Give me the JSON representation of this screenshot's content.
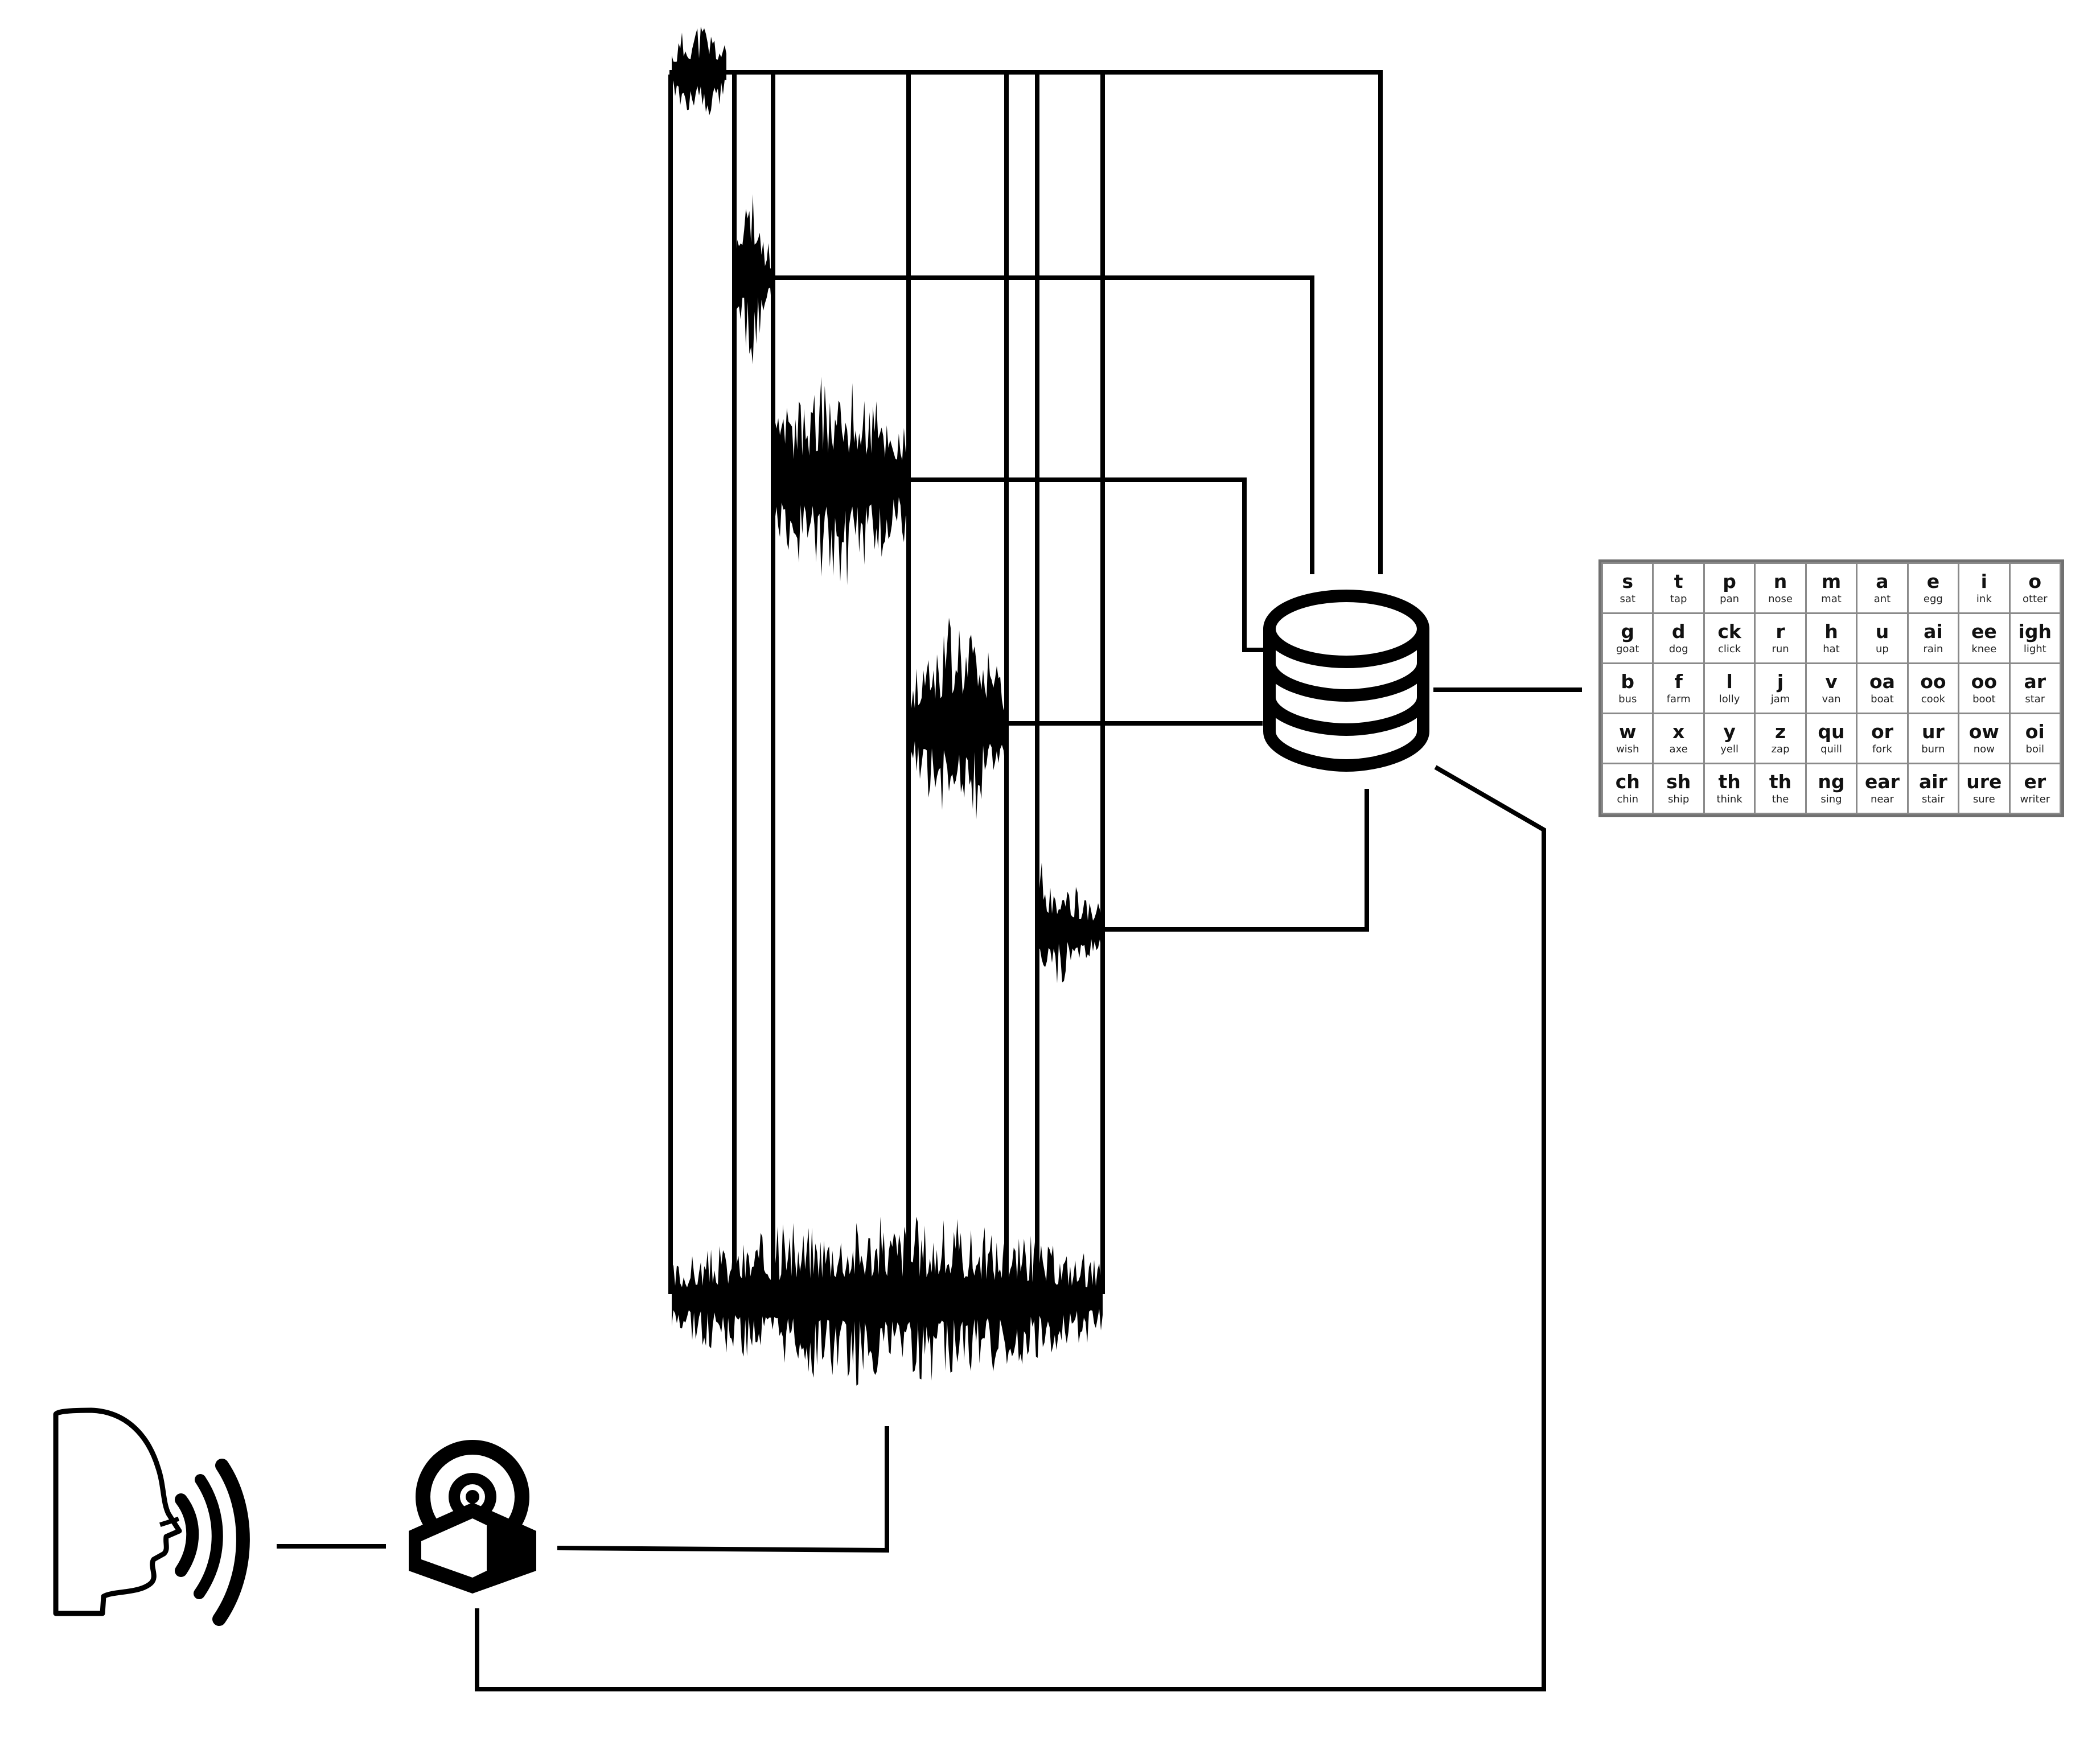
{
  "icons": {
    "speaker": "speaking-head-icon",
    "microphone": "microphone-icon",
    "database": "database-icon"
  },
  "phonics_table": {
    "rows": [
      [
        [
          "s",
          "sat"
        ],
        [
          "t",
          "tap"
        ],
        [
          "p",
          "pan"
        ],
        [
          "n",
          "nose"
        ],
        [
          "m",
          "mat"
        ],
        [
          "a",
          "ant"
        ],
        [
          "e",
          "egg"
        ],
        [
          "i",
          "ink"
        ],
        [
          "o",
          "otter"
        ]
      ],
      [
        [
          "g",
          "goat"
        ],
        [
          "d",
          "dog"
        ],
        [
          "ck",
          "click"
        ],
        [
          "r",
          "run"
        ],
        [
          "h",
          "hat"
        ],
        [
          "u",
          "up"
        ],
        [
          "ai",
          "rain"
        ],
        [
          "ee",
          "knee"
        ],
        [
          "igh",
          "light"
        ]
      ],
      [
        [
          "b",
          "bus"
        ],
        [
          "f",
          "farm"
        ],
        [
          "l",
          "lolly"
        ],
        [
          "j",
          "jam"
        ],
        [
          "v",
          "van"
        ],
        [
          "oa",
          "boat"
        ],
        [
          "oo",
          "cook"
        ],
        [
          "oo",
          "boot"
        ],
        [
          "ar",
          "star"
        ]
      ],
      [
        [
          "w",
          "wish"
        ],
        [
          "x",
          "axe"
        ],
        [
          "y",
          "yell"
        ],
        [
          "z",
          "zap"
        ],
        [
          "qu",
          "quill"
        ],
        [
          "or",
          "fork"
        ],
        [
          "ur",
          "burn"
        ],
        [
          "ow",
          "now"
        ],
        [
          "oi",
          "boil"
        ]
      ],
      [
        [
          "ch",
          "chin"
        ],
        [
          "sh",
          "ship"
        ],
        [
          "th",
          "think"
        ],
        [
          "th",
          "the"
        ],
        [
          "ng",
          "sing"
        ],
        [
          "ear",
          "near"
        ],
        [
          "air",
          "stair"
        ],
        [
          "ure",
          "sure"
        ],
        [
          "er",
          "writer"
        ]
      ]
    ]
  }
}
